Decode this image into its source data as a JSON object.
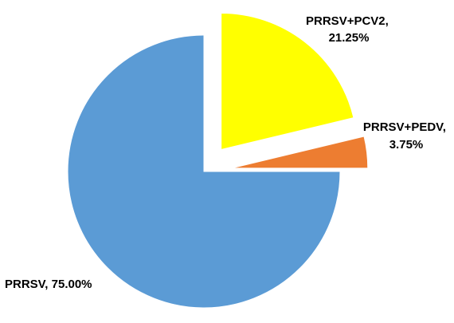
{
  "chart_data": {
    "type": "pie",
    "title": "",
    "start_angle_deg": 0,
    "direction": "clockwise",
    "legend": "none",
    "slices": [
      {
        "name": "PRRSV+PCV2",
        "value": 21.25,
        "label_line1": "PRRSV+PCV2,",
        "label_line2": "21.25%",
        "color": "#FFFF00",
        "exploded": true
      },
      {
        "name": "PRRSV+PEDV",
        "value": 3.75,
        "label_line1": "PRRSV+PEDV,",
        "label_line2": "3.75%",
        "color": "#ED7D31",
        "exploded": true
      },
      {
        "name": "PRRSV",
        "value": 75.0,
        "label_line1": "PRRSV, 75.00%",
        "label_line2": "",
        "color": "#5B9BD5",
        "exploded": false
      }
    ]
  }
}
